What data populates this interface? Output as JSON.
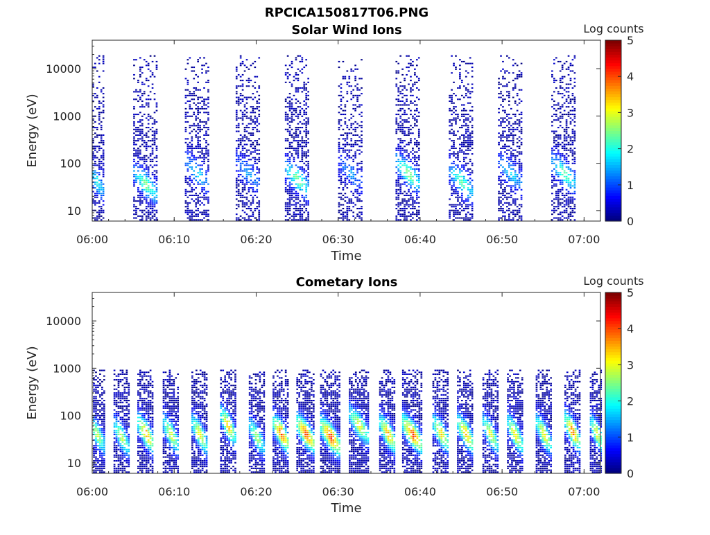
{
  "figure_title": "RPCICA150817T06.PNG",
  "chart_data": [
    {
      "type": "heatmap",
      "title": "Solar Wind Ions",
      "xlabel": "Time",
      "ylabel": "Energy (eV)",
      "y_scale": "log",
      "xlim": [
        "06:00",
        "07:02"
      ],
      "ylim": [
        6,
        40000
      ],
      "x_ticks": [
        "06:00",
        "06:10",
        "06:20",
        "06:30",
        "06:40",
        "06:50",
        "07:00"
      ],
      "y_ticks": [
        "10",
        "100",
        "1000",
        "10000"
      ],
      "colorbar": {
        "label": "Log counts",
        "range": [
          0,
          5
        ],
        "ticks": [
          "0",
          "1",
          "2",
          "3",
          "4",
          "5"
        ],
        "colormap": "jet"
      },
      "bursts": [
        {
          "time": "06:00.5",
          "duration_min": 2.0,
          "peak_energy_eV": 40,
          "peak_log_counts": 1.8,
          "max_energy_eV": 20000,
          "density": 0.55
        },
        {
          "time": "06:06.5",
          "duration_min": 3.0,
          "peak_energy_eV": 35,
          "peak_log_counts": 2.3,
          "max_energy_eV": 20000,
          "density": 0.55
        },
        {
          "time": "06:12.8",
          "duration_min": 3.0,
          "peak_energy_eV": 60,
          "peak_log_counts": 1.6,
          "max_energy_eV": 20000,
          "density": 0.5
        },
        {
          "time": "06:19",
          "duration_min": 3.0,
          "peak_energy_eV": 60,
          "peak_log_counts": 1.3,
          "max_energy_eV": 20000,
          "density": 0.5
        },
        {
          "time": "06:25",
          "duration_min": 3.0,
          "peak_energy_eV": 45,
          "peak_log_counts": 2.4,
          "max_energy_eV": 20000,
          "density": 0.55
        },
        {
          "time": "06:31.5",
          "duration_min": 3.0,
          "peak_energy_eV": 60,
          "peak_log_counts": 1.2,
          "max_energy_eV": 20000,
          "density": 0.45
        },
        {
          "time": "06:38.5",
          "duration_min": 3.0,
          "peak_energy_eV": 60,
          "peak_log_counts": 2.5,
          "max_energy_eV": 20000,
          "density": 0.55
        },
        {
          "time": "06:45",
          "duration_min": 3.0,
          "peak_energy_eV": 40,
          "peak_log_counts": 2.2,
          "max_energy_eV": 20000,
          "density": 0.5
        },
        {
          "time": "06:51",
          "duration_min": 3.0,
          "peak_energy_eV": 60,
          "peak_log_counts": 1.6,
          "max_energy_eV": 20000,
          "density": 0.5
        },
        {
          "time": "06:57.5",
          "duration_min": 3.0,
          "peak_energy_eV": 60,
          "peak_log_counts": 2.2,
          "max_energy_eV": 20000,
          "density": 0.55
        }
      ]
    },
    {
      "type": "heatmap",
      "title": "Cometary Ions",
      "xlabel": "Time",
      "ylabel": "Energy (eV)",
      "y_scale": "log",
      "xlim": [
        "06:00",
        "07:02"
      ],
      "ylim": [
        6,
        40000
      ],
      "x_ticks": [
        "06:00",
        "06:10",
        "06:20",
        "06:30",
        "06:40",
        "06:50",
        "07:00"
      ],
      "y_ticks": [
        "10",
        "100",
        "1000",
        "10000"
      ],
      "colorbar": {
        "label": "Log counts",
        "range": [
          0,
          5
        ],
        "ticks": [
          "0",
          "1",
          "2",
          "3",
          "4",
          "5"
        ],
        "colormap": "jet"
      },
      "bursts": [
        {
          "time": "06:00.5",
          "duration_min": 1.8,
          "peak_energy_eV": 40,
          "peak_log_counts": 2.8,
          "max_energy_eV": 900,
          "density": 0.75
        },
        {
          "time": "06:03.5",
          "duration_min": 1.8,
          "peak_energy_eV": 35,
          "peak_log_counts": 2.8,
          "max_energy_eV": 900,
          "density": 0.75
        },
        {
          "time": "06:06.5",
          "duration_min": 2.0,
          "peak_energy_eV": 40,
          "peak_log_counts": 3.6,
          "max_energy_eV": 900,
          "density": 0.75
        },
        {
          "time": "06:09.5",
          "duration_min": 1.8,
          "peak_energy_eV": 40,
          "peak_log_counts": 3.0,
          "max_energy_eV": 900,
          "density": 0.75
        },
        {
          "time": "06:13",
          "duration_min": 1.8,
          "peak_energy_eV": 40,
          "peak_log_counts": 3.2,
          "max_energy_eV": 900,
          "density": 0.75
        },
        {
          "time": "06:16.5",
          "duration_min": 1.8,
          "peak_energy_eV": 60,
          "peak_log_counts": 3.4,
          "max_energy_eV": 900,
          "density": 0.75
        },
        {
          "time": "06:20",
          "duration_min": 1.8,
          "peak_energy_eV": 35,
          "peak_log_counts": 2.6,
          "max_energy_eV": 900,
          "density": 0.75
        },
        {
          "time": "06:23",
          "duration_min": 2.0,
          "peak_energy_eV": 40,
          "peak_log_counts": 3.9,
          "max_energy_eV": 900,
          "density": 0.8
        },
        {
          "time": "06:26",
          "duration_min": 2.2,
          "peak_energy_eV": 40,
          "peak_log_counts": 4.0,
          "max_energy_eV": 900,
          "density": 0.8
        },
        {
          "time": "06:29",
          "duration_min": 2.4,
          "peak_energy_eV": 35,
          "peak_log_counts": 4.1,
          "max_energy_eV": 900,
          "density": 0.85
        },
        {
          "time": "06:32.5",
          "duration_min": 2.4,
          "peak_energy_eV": 60,
          "peak_log_counts": 3.0,
          "max_energy_eV": 900,
          "density": 0.8
        },
        {
          "time": "06:36",
          "duration_min": 2.0,
          "peak_energy_eV": 40,
          "peak_log_counts": 3.5,
          "max_energy_eV": 900,
          "density": 0.8
        },
        {
          "time": "06:39",
          "duration_min": 2.4,
          "peak_energy_eV": 40,
          "peak_log_counts": 4.0,
          "max_energy_eV": 900,
          "density": 0.8
        },
        {
          "time": "06:42.5",
          "duration_min": 2.0,
          "peak_energy_eV": 40,
          "peak_log_counts": 3.2,
          "max_energy_eV": 900,
          "density": 0.75
        },
        {
          "time": "06:45.5",
          "duration_min": 2.0,
          "peak_energy_eV": 40,
          "peak_log_counts": 3.5,
          "max_energy_eV": 900,
          "density": 0.75
        },
        {
          "time": "06:48.5",
          "duration_min": 1.8,
          "peak_energy_eV": 40,
          "peak_log_counts": 3.0,
          "max_energy_eV": 900,
          "density": 0.75
        },
        {
          "time": "06:51.5",
          "duration_min": 1.8,
          "peak_energy_eV": 40,
          "peak_log_counts": 3.3,
          "max_energy_eV": 900,
          "density": 0.75
        },
        {
          "time": "06:55",
          "duration_min": 1.8,
          "peak_energy_eV": 40,
          "peak_log_counts": 3.2,
          "max_energy_eV": 900,
          "density": 0.75
        },
        {
          "time": "06:58.5",
          "duration_min": 1.8,
          "peak_energy_eV": 45,
          "peak_log_counts": 3.8,
          "max_energy_eV": 900,
          "density": 0.75
        },
        {
          "time": "07:01.5",
          "duration_min": 1.6,
          "peak_energy_eV": 40,
          "peak_log_counts": 3.0,
          "max_energy_eV": 900,
          "density": 0.75
        }
      ]
    }
  ]
}
